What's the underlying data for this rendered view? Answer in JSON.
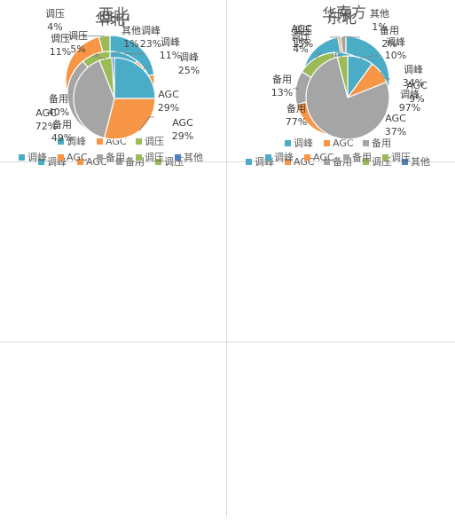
{
  "colors": {
    "调峰": "#4bacc6",
    "AGC": "#f79646",
    "备用": "#a5a5a5",
    "调压": "#9bbb59",
    "其他": "#4f81bd",
    "leader": "#7f7f7f",
    "title": "#595959",
    "label": "#404040"
  },
  "chart_data": [
    {
      "type": "pie",
      "title": "华北",
      "slices": [
        {
          "name": "调峰",
          "value": 23,
          "label": "23%"
        },
        {
          "name": "AGC",
          "value": 72,
          "label": "72%"
        },
        {
          "name": "调压",
          "value": 4,
          "label": "4%"
        }
      ],
      "legend": [
        "调峰",
        "AGC",
        "调压"
      ],
      "legend_position": "bottom"
    },
    {
      "type": "pie",
      "title": "东北",
      "slices": [
        {
          "name": "调峰",
          "value": 97,
          "label": "97%"
        },
        {
          "name": "AGC",
          "value": 1,
          "label": "1%"
        },
        {
          "name": "备用",
          "value": 2,
          "label": "2%"
        }
      ],
      "legend": [
        "调峰",
        "AGC",
        "备用"
      ],
      "legend_position": "bottom"
    },
    {
      "type": "pie",
      "title": "西北",
      "slices": [
        {
          "name": "调峰",
          "value": 11,
          "label": "11%"
        },
        {
          "name": "AGC",
          "value": 29,
          "label": "29%"
        },
        {
          "name": "备用",
          "value": 49,
          "label": "49%"
        },
        {
          "name": "调压",
          "value": 11,
          "label": "11%"
        }
      ],
      "legend": [
        "调峰",
        "AGC",
        "备用",
        "调压"
      ],
      "legend_position": "bottom"
    },
    {
      "type": "pie",
      "title": "华东",
      "slices": [
        {
          "name": "调峰",
          "value": 34,
          "label": "34%"
        },
        {
          "name": "AGC",
          "value": 37,
          "label": "37%"
        },
        {
          "name": "备用",
          "value": 13,
          "label": "13%"
        },
        {
          "name": "调压",
          "value": 15,
          "label": "15%"
        },
        {
          "name": "其他",
          "value": 1,
          "label": "1%"
        }
      ],
      "legend": [
        "调峰",
        "AGC",
        "备用",
        "调压",
        "其他"
      ],
      "legend_position": "bottom"
    },
    {
      "type": "pie",
      "title": "华中",
      "slices": [
        {
          "name": "调峰",
          "value": 25,
          "label": "25%"
        },
        {
          "name": "AGC",
          "value": 29,
          "label": "29%"
        },
        {
          "name": "备用",
          "value": 40,
          "label": "40%"
        },
        {
          "name": "调压",
          "value": 5,
          "label": "5%"
        },
        {
          "name": "其他",
          "value": 1,
          "label": "1%"
        }
      ],
      "legend": [
        "调峰",
        "AGC",
        "备用",
        "调压",
        "其他"
      ],
      "legend_position": "bottom"
    },
    {
      "type": "pie",
      "title": "南方",
      "slices": [
        {
          "name": "调峰",
          "value": 10,
          "label": "10%"
        },
        {
          "name": "AGC",
          "value": 9,
          "label": "9%"
        },
        {
          "name": "备用",
          "value": 77,
          "label": "77%"
        },
        {
          "name": "调压",
          "value": 4,
          "label": "4%"
        }
      ],
      "legend": [
        "调峰",
        "AGC",
        "备用",
        "调压"
      ],
      "legend_position": "bottom"
    }
  ]
}
